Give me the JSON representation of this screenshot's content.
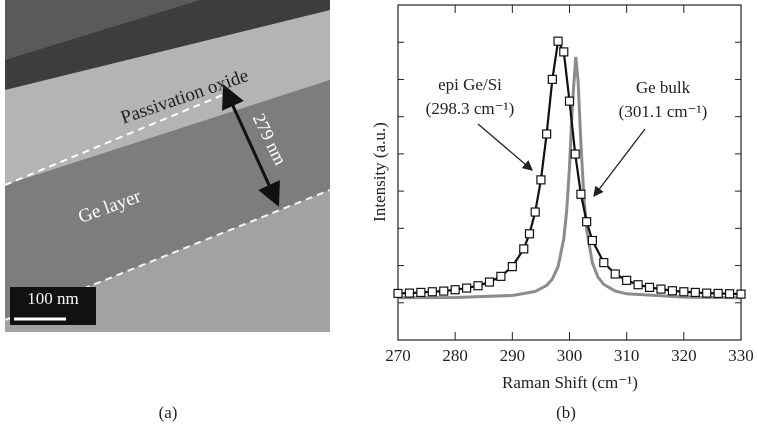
{
  "panel_a": {
    "texts": {
      "oxide": "Passivation oxide",
      "thickness": "279 nm",
      "layer": "Ge layer",
      "scale": "100 nm"
    }
  },
  "captions": [
    "(a)",
    "(b)"
  ],
  "chart_data": {
    "type": "line",
    "xlabel": "Raman Shift (cm⁻¹)",
    "ylabel": "Intensity (a.u.)",
    "xlim": [
      270,
      330
    ],
    "xticks": [
      270,
      280,
      290,
      300,
      310,
      320,
      330
    ],
    "ylim": [
      0,
      1
    ],
    "series": [
      {
        "name": "epi Ge/Si",
        "peak_label": "(298.3 cm⁻¹)",
        "color": "#111111",
        "markers": true,
        "x": [
          270,
          272,
          274,
          276,
          278,
          280,
          282,
          284,
          286,
          288,
          290,
          292,
          293,
          294,
          295,
          296,
          297,
          298,
          299,
          300,
          301,
          302,
          303,
          304,
          306,
          308,
          310,
          312,
          314,
          316,
          318,
          320,
          322,
          324,
          326,
          328,
          330
        ],
        "values": [
          0.139,
          0.14,
          0.142,
          0.144,
          0.146,
          0.15,
          0.155,
          0.162,
          0.173,
          0.19,
          0.219,
          0.272,
          0.317,
          0.382,
          0.478,
          0.615,
          0.778,
          0.892,
          0.86,
          0.713,
          0.555,
          0.435,
          0.353,
          0.297,
          0.231,
          0.197,
          0.178,
          0.165,
          0.157,
          0.152,
          0.147,
          0.144,
          0.142,
          0.14,
          0.139,
          0.138,
          0.137
        ]
      },
      {
        "name": "Ge bulk",
        "peak_label": "(301.1 cm⁻¹)",
        "color": "#8c8c8c",
        "markers": false,
        "x": [
          270,
          280,
          290,
          294,
          296,
          297,
          298,
          299,
          299.5,
          300,
          300.5,
          301.1,
          301.5,
          302,
          302.5,
          303,
          304,
          305,
          306,
          308,
          310,
          320,
          330
        ],
        "values": [
          0.126,
          0.127,
          0.133,
          0.145,
          0.163,
          0.182,
          0.219,
          0.302,
          0.384,
          0.516,
          0.701,
          0.845,
          0.773,
          0.586,
          0.43,
          0.33,
          0.23,
          0.187,
          0.166,
          0.146,
          0.138,
          0.128,
          0.126
        ]
      }
    ]
  }
}
